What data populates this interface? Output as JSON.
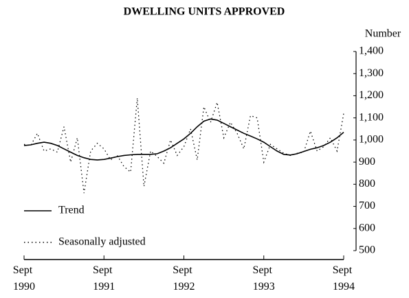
{
  "chart_data": {
    "type": "line",
    "title": "DWELLING UNITS APPROVED",
    "y_label": "Number",
    "categories": [
      "Sept 1990",
      null,
      null,
      null,
      null,
      null,
      null,
      null,
      null,
      null,
      null,
      null,
      "Sept 1991",
      null,
      null,
      null,
      null,
      null,
      null,
      null,
      null,
      null,
      null,
      null,
      "Sept 1992",
      null,
      null,
      null,
      null,
      null,
      null,
      null,
      null,
      null,
      null,
      null,
      "Sept 1993",
      null,
      null,
      null,
      null,
      null,
      null,
      null,
      null,
      null,
      null,
      null,
      "Sept 1994"
    ],
    "series": [
      {
        "name": "Trend",
        "color": "#000000",
        "dash": "solid",
        "values": [
          975,
          978,
          985,
          990,
          985,
          975,
          960,
          945,
          930,
          920,
          912,
          910,
          912,
          918,
          925,
          930,
          933,
          935,
          935,
          935,
          938,
          950,
          965,
          985,
          1005,
          1030,
          1060,
          1085,
          1095,
          1090,
          1075,
          1060,
          1045,
          1030,
          1018,
          1005,
          990,
          970,
          950,
          935,
          932,
          938,
          948,
          958,
          965,
          975,
          990,
          1010,
          1035
        ]
      },
      {
        "name": "Seasonally adjusted",
        "color": "#000000",
        "dash": "dotted",
        "values": [
          980,
          975,
          1030,
          950,
          960,
          945,
          1060,
          900,
          1010,
          760,
          950,
          985,
          960,
          910,
          930,
          880,
          855,
          1190,
          790,
          950,
          925,
          895,
          1000,
          930,
          970,
          1050,
          910,
          1150,
          1080,
          1170,
          1010,
          1080,
          1030,
          960,
          1110,
          1100,
          900,
          980,
          960,
          940,
          930,
          940,
          945,
          1040,
          950,
          970,
          1010,
          950,
          1120
        ]
      }
    ],
    "ylim": [
      500,
      1400
    ],
    "yticks": [
      {
        "value": 500,
        "label": "500"
      },
      {
        "value": 600,
        "label": "600"
      },
      {
        "value": 700,
        "label": "700"
      },
      {
        "value": 800,
        "label": "800"
      },
      {
        "value": 900,
        "label": "900"
      },
      {
        "value": 1000,
        "label": "1,000"
      },
      {
        "value": 1100,
        "label": "1,100"
      },
      {
        "value": 1200,
        "label": "1,200"
      },
      {
        "value": 1300,
        "label": "1,300"
      },
      {
        "value": 1400,
        "label": "1,400"
      }
    ],
    "y_axis_side": "right",
    "grid": false,
    "legend": "lower left"
  }
}
